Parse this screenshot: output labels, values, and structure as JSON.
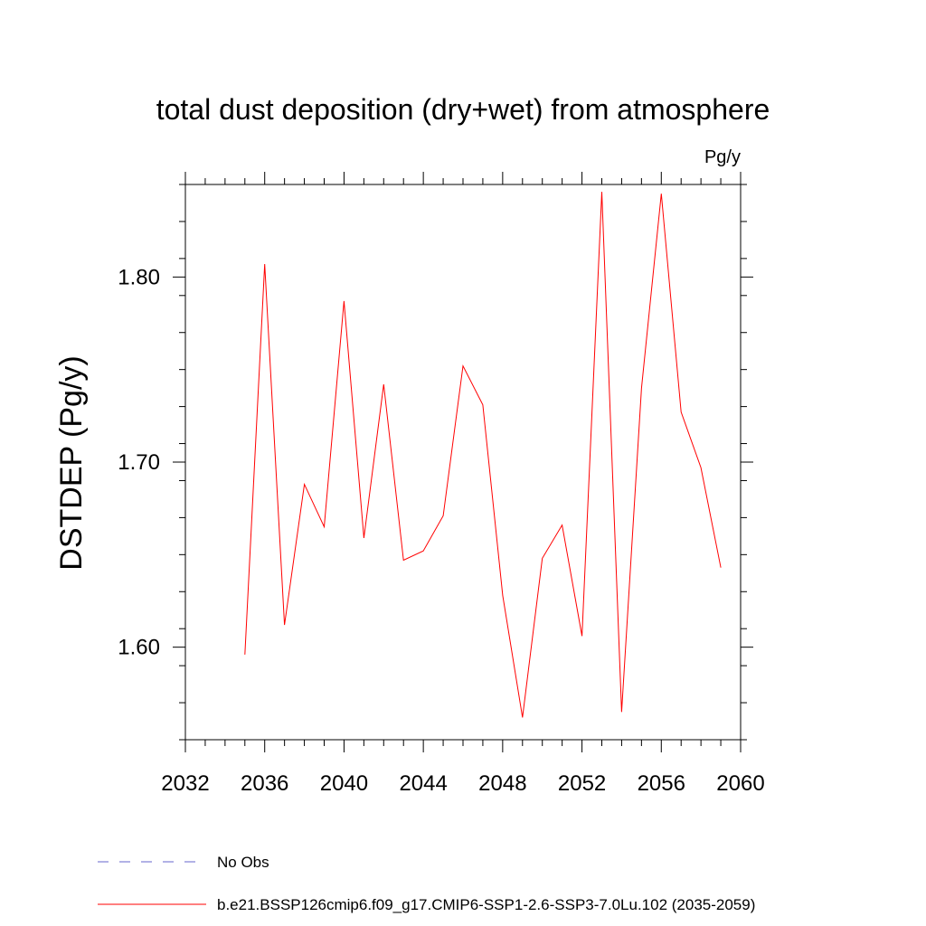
{
  "chart_data": {
    "type": "line",
    "title": "total dust deposition (dry+wet) from atmosphere",
    "units": "Pg/y",
    "ylabel": "DSTDEP  (Pg/y)",
    "xlabel": "",
    "xlim": [
      2032,
      2060
    ],
    "ylim": [
      1.55,
      1.85
    ],
    "x_ticks": [
      2032,
      2036,
      2040,
      2044,
      2048,
      2052,
      2056,
      2060
    ],
    "x_tick_labels": [
      "2032",
      "2036",
      "2040",
      "2044",
      "2048",
      "2052",
      "2056",
      "2060"
    ],
    "y_ticks": [
      1.6,
      1.7,
      1.8
    ],
    "y_tick_labels": [
      "1.60",
      "1.70",
      "1.80"
    ],
    "grid": false,
    "series": [
      {
        "name": "b.e21.BSSP126cmip6.f09_g17.CMIP6-SSP1-2.6-SSP3-7.0Lu.102 (2035-2059)",
        "color": "#ff0000",
        "x": [
          2035,
          2036,
          2037,
          2038,
          2039,
          2040,
          2041,
          2042,
          2043,
          2044,
          2045,
          2046,
          2047,
          2048,
          2049,
          2050,
          2051,
          2052,
          2053,
          2054,
          2055,
          2056,
          2057,
          2058,
          2059
        ],
        "values": [
          1.596,
          1.807,
          1.612,
          1.688,
          1.665,
          1.787,
          1.659,
          1.742,
          1.647,
          1.652,
          1.671,
          1.752,
          1.731,
          1.628,
          1.562,
          1.648,
          1.666,
          1.606,
          1.846,
          1.565,
          1.74,
          1.845,
          1.727,
          1.697,
          1.643
        ]
      }
    ],
    "legend": [
      {
        "label": "No Obs",
        "color": "#6666cc",
        "style": "dashed"
      },
      {
        "label": "b.e21.BSSP126cmip6.f09_g17.CMIP6-SSP1-2.6-SSP3-7.0Lu.102 (2035-2059)",
        "color": "#ff0000",
        "style": "solid"
      }
    ],
    "legend_position": "bottom-left"
  }
}
